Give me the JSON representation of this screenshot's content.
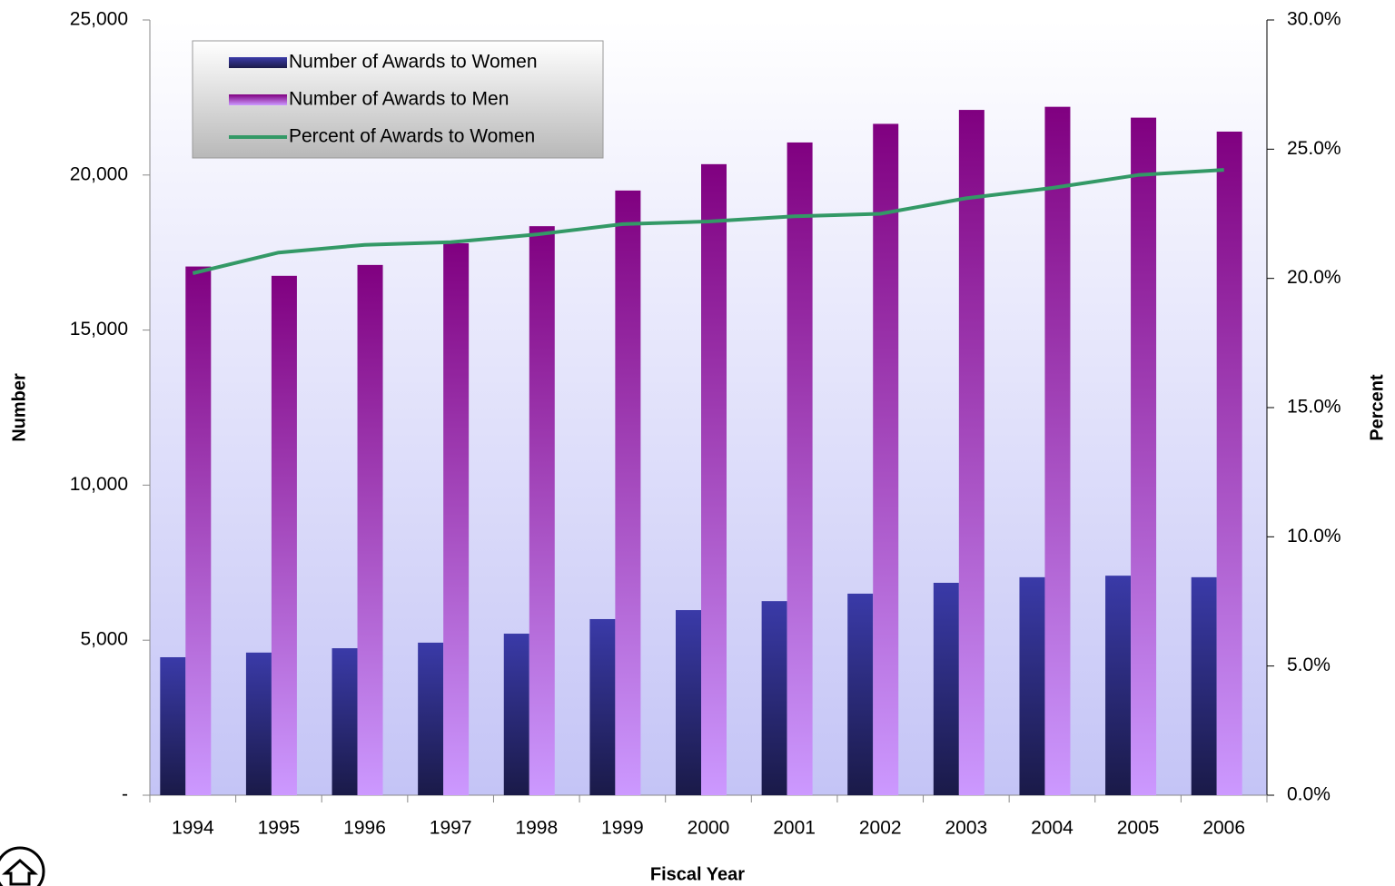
{
  "chart_data": {
    "type": "bar",
    "categories": [
      "1994",
      "1995",
      "1996",
      "1997",
      "1998",
      "1999",
      "2000",
      "2001",
      "2002",
      "2003",
      "2004",
      "2005",
      "2006"
    ],
    "series": [
      {
        "name": "Number of Awards to Women",
        "color": "#3a3aa8",
        "values": [
          4450,
          4600,
          4740,
          4920,
          5210,
          5680,
          5970,
          6260,
          6500,
          6850,
          7030,
          7080,
          7030
        ]
      },
      {
        "name": "Number of Awards to Men",
        "color": "#800080",
        "values": [
          17050,
          16750,
          17100,
          17800,
          18350,
          19500,
          20350,
          21050,
          21650,
          22100,
          22200,
          21850,
          21400
        ]
      },
      {
        "name": "Percent of Awards to Women",
        "color": "#339966",
        "type": "line",
        "axis": "y2",
        "values": [
          20.2,
          21.0,
          21.3,
          21.4,
          21.7,
          22.1,
          22.2,
          22.4,
          22.5,
          23.1,
          23.5,
          24.0,
          24.2
        ]
      }
    ],
    "x_label": "Fiscal Year",
    "y_label": "Number",
    "y2_label": "Percent",
    "ylim": [
      0,
      25000
    ],
    "yticks": [
      {
        "value": 0,
        "label": "-"
      },
      {
        "value": 5000,
        "label": "5,000"
      },
      {
        "value": 10000,
        "label": "10,000"
      },
      {
        "value": 15000,
        "label": "15,000"
      },
      {
        "value": 20000,
        "label": "20,000"
      },
      {
        "value": 25000,
        "label": "25,000"
      }
    ],
    "y2lim": [
      0,
      30
    ],
    "y2ticks": [
      {
        "value": 0,
        "label": "0.0%"
      },
      {
        "value": 5,
        "label": "5.0%"
      },
      {
        "value": 10,
        "label": "10.0%"
      },
      {
        "value": 15,
        "label": "15.0%"
      },
      {
        "value": 20,
        "label": "20.0%"
      },
      {
        "value": 25,
        "label": "25.0%"
      },
      {
        "value": 30,
        "label": "30.0%"
      }
    ],
    "legend": "upper left"
  }
}
